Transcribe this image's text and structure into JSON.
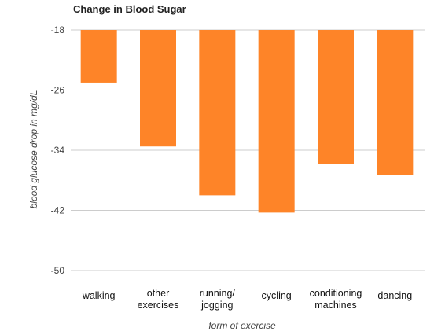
{
  "chart_data": {
    "type": "bar",
    "title": "Change in Blood Sugar",
    "xlabel": "form of exercise",
    "ylabel": "blood glucose drop in mg/dL",
    "categories": [
      [
        "walking"
      ],
      [
        "other",
        "exercises"
      ],
      [
        "running/",
        "jogging"
      ],
      [
        "cycling"
      ],
      [
        "conditioning",
        "machines"
      ],
      [
        "dancing"
      ]
    ],
    "values": [
      -25,
      -33.5,
      -40,
      -42.3,
      -35.8,
      -37.3
    ],
    "ylim": [
      -50,
      -18
    ],
    "yticks": [
      -18,
      -26,
      -34,
      -42,
      -50
    ],
    "ytick_labels": [
      "-18",
      "-26",
      "-34",
      "-42",
      "-50"
    ],
    "bar_color": "#fe8428",
    "grid": true,
    "legend": false
  }
}
